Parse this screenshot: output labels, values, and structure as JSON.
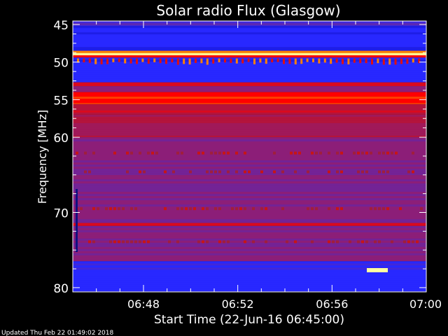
{
  "chart_data": {
    "type": "heatmap",
    "title": "Solar radio Flux (Glasgow)",
    "xlabel": "Start Time (22-Jun-16 06:45:00)",
    "ylabel": "Frequency [MHz]",
    "x_range": [
      "06:45",
      "07:00"
    ],
    "x_ticks": [
      "06:48",
      "06:52",
      "06:56",
      "07:00"
    ],
    "y_range": [
      44.5,
      80.5
    ],
    "y_ticks": [
      45,
      50,
      55,
      60,
      70,
      80
    ],
    "y_inverted": true,
    "colormap": [
      "#000060",
      "#1414d0",
      "#2828ff",
      "#5a28b4",
      "#8c1e78",
      "#b4143c",
      "#ff0000",
      "#ff8000",
      "#ffff40",
      "#ffffe0"
    ],
    "bands": [
      {
        "from": 44.5,
        "to": 45.2,
        "level": 0.3
      },
      {
        "from": 45.2,
        "to": 48.5,
        "level": 0.18
      },
      {
        "from": 48.5,
        "to": 48.8,
        "level": 0.8
      },
      {
        "from": 48.8,
        "to": 49.1,
        "level": 0.98
      },
      {
        "from": 49.1,
        "to": 49.4,
        "level": 0.7
      },
      {
        "from": 49.4,
        "to": 52.7,
        "level": 0.2
      },
      {
        "from": 52.7,
        "to": 53.2,
        "level": 0.62
      },
      {
        "from": 53.2,
        "to": 54.0,
        "level": 0.45
      },
      {
        "from": 54.0,
        "to": 54.6,
        "level": 0.66
      },
      {
        "from": 54.6,
        "to": 55.6,
        "level": 0.72
      },
      {
        "from": 55.6,
        "to": 57.0,
        "level": 0.6
      },
      {
        "from": 57.0,
        "to": 60.0,
        "level": 0.5
      },
      {
        "from": 60.0,
        "to": 71.4,
        "level": 0.4
      },
      {
        "from": 71.4,
        "to": 71.8,
        "level": 0.62
      },
      {
        "from": 71.8,
        "to": 76.5,
        "level": 0.4
      },
      {
        "from": 76.5,
        "to": 80.5,
        "level": 0.24
      }
    ],
    "dotted_rows_mhz": [
      62.1,
      64.6,
      69.5,
      73.9
    ],
    "spike_row_mhz": 49.8
  },
  "footer": {
    "updated": "Updated Thu Feb 22 01:49:02 2018"
  }
}
